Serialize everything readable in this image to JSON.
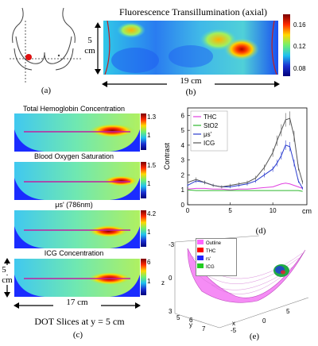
{
  "panel_a": {
    "label": "(a)"
  },
  "panel_b": {
    "label": "(b)",
    "title": "Fluorescence Transillumination (axial)",
    "height_label": "5",
    "height_unit": "cm",
    "width_label": "19 cm",
    "colorbar_ticks": [
      "0.16",
      "0.12",
      "0.08"
    ],
    "colors": {
      "low": "#1a3cff",
      "mid": "#3fd8d0",
      "high": "#e8160e"
    }
  },
  "panel_c": {
    "label": "(c)",
    "caption": "DOT Slices at y = 5 cm",
    "height_label": "5",
    "height_unit": "cm",
    "width_label": "17 cm",
    "slices": [
      {
        "title": "Total Hemoglobin Concentration",
        "cb_top": "1.3",
        "cb_bottom": "1"
      },
      {
        "title": "Blood Oxygen Saturation",
        "cb_top": "1.5",
        "cb_bottom": "1"
      },
      {
        "title": "μs' (786nm)",
        "cb_top": "4.2",
        "cb_bottom": "1"
      },
      {
        "title": "ICG Concentration",
        "cb_top": "6",
        "cb_bottom": "1"
      }
    ]
  },
  "chart_data": {
    "type": "line",
    "ylabel": "Contrast",
    "xlabel": "cm",
    "xlim": [
      0,
      14
    ],
    "ylim": [
      0,
      6.5
    ],
    "xticks": [
      0,
      5,
      10
    ],
    "yticks": [
      0,
      1,
      2,
      3,
      4,
      5,
      6
    ],
    "legend_position": "top-left",
    "x": [
      0,
      1,
      2,
      3,
      4,
      5,
      6,
      7,
      8,
      9,
      10,
      10.5,
      11,
      11.5,
      12,
      12.5,
      13,
      13.5
    ],
    "series": [
      {
        "name": "THC",
        "color": "#e040e0",
        "values": [
          1.05,
          1.1,
          1.1,
          1.05,
          1.05,
          1.0,
          1.05,
          1.05,
          1.1,
          1.15,
          1.2,
          1.3,
          1.4,
          1.45,
          1.4,
          1.3,
          1.2,
          1.1
        ]
      },
      {
        "name": "StO2",
        "color": "#2db82d",
        "values": [
          1.0,
          0.95,
          0.95,
          0.95,
          0.95,
          0.95,
          0.95,
          0.95,
          0.95,
          0.95,
          0.95,
          0.95,
          0.95,
          0.95,
          0.95,
          0.95,
          0.95,
          0.9
        ]
      },
      {
        "name": "μs'",
        "color": "#2a3ccf",
        "values": [
          1.3,
          1.6,
          1.5,
          1.3,
          1.2,
          1.2,
          1.3,
          1.4,
          1.6,
          2.0,
          2.4,
          2.8,
          3.3,
          4.0,
          3.9,
          2.8,
          1.6,
          1.1
        ]
      },
      {
        "name": "ICG",
        "color": "#555555",
        "values": [
          1.5,
          1.7,
          1.5,
          1.3,
          1.2,
          1.3,
          1.4,
          1.5,
          1.8,
          2.5,
          3.5,
          4.3,
          5.0,
          5.7,
          5.8,
          4.6,
          2.5,
          1.5
        ]
      }
    ],
    "label": "(d)"
  },
  "panel_e": {
    "label": "(e)",
    "legend": [
      "Outline",
      "THC",
      "rs'",
      "ICG"
    ],
    "legend_colors": [
      "#ff66ff",
      "#ff0000",
      "#2222ff",
      "#22cc22"
    ],
    "axis_z": "z",
    "axis_x": "x",
    "axis_y": "y",
    "z_ticks": [
      "-3",
      "-2",
      "-1",
      "0",
      "1",
      "2",
      "3"
    ],
    "x_ticks": [
      "-5",
      "0",
      "5"
    ],
    "y_ticks": [
      "5",
      "6",
      "7"
    ]
  }
}
